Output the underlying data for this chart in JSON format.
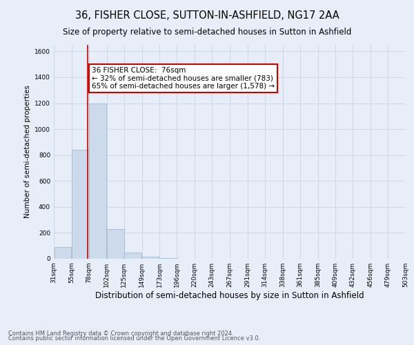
{
  "title": "36, FISHER CLOSE, SUTTON-IN-ASHFIELD, NG17 2AA",
  "subtitle": "Size of property relative to semi-detached houses in Sutton in Ashfield",
  "xlabel": "Distribution of semi-detached houses by size in Sutton in Ashfield",
  "ylabel": "Number of semi-detached properties",
  "bin_labels": [
    "31sqm",
    "55sqm",
    "78sqm",
    "102sqm",
    "125sqm",
    "149sqm",
    "173sqm",
    "196sqm",
    "220sqm",
    "243sqm",
    "267sqm",
    "291sqm",
    "314sqm",
    "338sqm",
    "361sqm",
    "385sqm",
    "409sqm",
    "432sqm",
    "456sqm",
    "479sqm",
    "503sqm"
  ],
  "bin_edges": [
    31,
    55,
    78,
    102,
    125,
    149,
    173,
    196,
    220,
    243,
    267,
    291,
    314,
    338,
    361,
    385,
    409,
    432,
    456,
    479,
    503
  ],
  "bar_heights": [
    90,
    840,
    1200,
    230,
    50,
    15,
    5,
    0,
    0,
    0,
    0,
    0,
    0,
    0,
    0,
    0,
    0,
    0,
    0,
    0
  ],
  "bar_color": "#ccdaeb",
  "bar_edge_color": "#9ab0c8",
  "property_size": 76,
  "property_line_color": "#cc0000",
  "annotation_text": "36 FISHER CLOSE:  76sqm\n← 32% of semi-detached houses are smaller (783)\n65% of semi-detached houses are larger (1,578) →",
  "annotation_box_color": "#ffffff",
  "annotation_box_edge": "#cc0000",
  "ylim": [
    0,
    1650
  ],
  "yticks": [
    0,
    200,
    400,
    600,
    800,
    1000,
    1200,
    1400,
    1600
  ],
  "grid_color": "#c8d4e4",
  "background_color": "#e8eef8",
  "footer_line1": "Contains HM Land Registry data © Crown copyright and database right 2024.",
  "footer_line2": "Contains public sector information licensed under the Open Government Licence v3.0.",
  "title_fontsize": 10.5,
  "subtitle_fontsize": 8.5,
  "xlabel_fontsize": 8.5,
  "ylabel_fontsize": 7.5,
  "tick_fontsize": 6.5,
  "footer_fontsize": 6.0,
  "ann_fontsize": 7.5
}
